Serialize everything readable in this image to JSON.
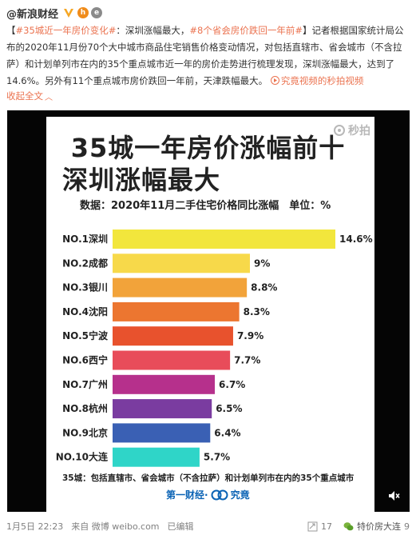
{
  "post": {
    "author": "@新浪财经",
    "badge_h": "h",
    "badge_e": "e",
    "topic1": "#35城近一年房价变化#",
    "text1": "：深圳涨幅最大，",
    "topic2": "#8个省会房价跌回一年前#",
    "text2": "】记者根据国家统计局公布的2020年11月份70个大中城市商品住宅销售价格变动情况，对包括直辖市、省会城市（不含拉萨）和计划单列市在内的35个重点城市近一年的房价走势进行梳理发现，深圳涨幅最大，达到了14.6%。另外有11个重点城市房价跌回一年前，天津跌幅最大。",
    "bracket_open": "【",
    "video_link": "究竟视频的秒拍视频",
    "collapse": "收起全文",
    "collapse_arrow": "︿"
  },
  "card": {
    "title_line1": "35城一年房价涨幅前十",
    "title_line2": "深圳涨幅最大",
    "subtitle": "数据：2020年11月二手住宅价格同比涨幅　单位：%",
    "watermark": "秒拍",
    "footnote": "35城：包括直辖市、省会城市（不含拉萨）和计划单列市在内的35个重点城市",
    "brand_left": "第一财经·",
    "brand_right": "究竟"
  },
  "chart_data": {
    "type": "bar",
    "orientation": "horizontal",
    "title": "35城一年房价涨幅前十 深圳涨幅最大",
    "categories": [
      "NO.1深圳",
      "NO.2成都",
      "NO.3银川",
      "NO.4沈阳",
      "NO.5宁波",
      "NO.6西宁",
      "NO.7广州",
      "NO.8杭州",
      "NO.9北京",
      "NO.10大连"
    ],
    "values": [
      14.6,
      9,
      8.8,
      8.3,
      7.9,
      7.7,
      6.7,
      6.5,
      6.4,
      5.7
    ],
    "value_labels": [
      "14.6%",
      "9%",
      "8.8%",
      "8.3%",
      "7.9%",
      "7.7%",
      "6.7%",
      "6.5%",
      "6.4%",
      "5.7%"
    ],
    "colors": [
      "#f2e63c",
      "#f7d94a",
      "#f2a33a",
      "#ec7630",
      "#e8522d",
      "#e84c5a",
      "#b6308c",
      "#7a3ca0",
      "#3a60b4",
      "#2fd5c8"
    ],
    "xlim": [
      0,
      14.6
    ],
    "grid": false,
    "legend": "none"
  },
  "footer": {
    "time": "1月5日 22:23",
    "source": "来自 微博 weibo.com",
    "edited": "已编辑",
    "repost_count": "17",
    "wechat_name": "特价房大连",
    "like_count": "9"
  }
}
